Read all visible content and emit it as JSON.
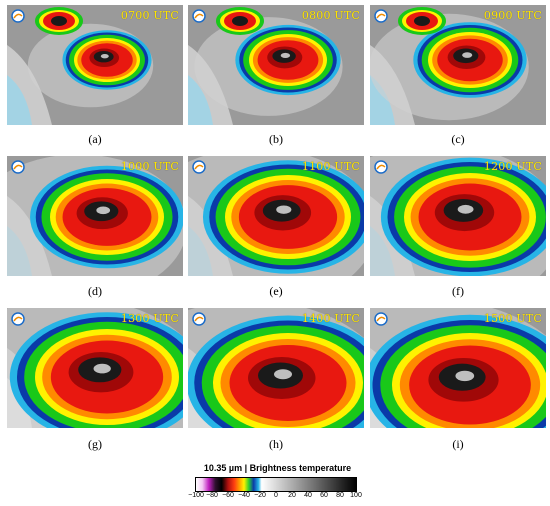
{
  "figure": {
    "panels": [
      {
        "id": "a",
        "caption": "(a)",
        "time": "0700 UTC"
      },
      {
        "id": "b",
        "caption": "(b)",
        "time": "0800 UTC"
      },
      {
        "id": "c",
        "caption": "(c)",
        "time": "0900 UTC"
      },
      {
        "id": "d",
        "caption": "(d)",
        "time": "1000 UTC"
      },
      {
        "id": "e",
        "caption": "(e)",
        "time": "1100 UTC"
      },
      {
        "id": "f",
        "caption": "(f)",
        "time": "1200 UTC"
      },
      {
        "id": "g",
        "caption": "(g)",
        "time": "1300 UTC"
      },
      {
        "id": "h",
        "caption": "(h)",
        "time": "1400 UTC"
      },
      {
        "id": "i",
        "caption": "(i)",
        "time": "1500 UTC"
      }
    ],
    "colorbar": {
      "title": "10.35 µm | Brightness temperature",
      "ticks": [
        "−100",
        "−80",
        "−60",
        "−40",
        "−20",
        "0",
        "20",
        "40",
        "60",
        "80",
        "100"
      ],
      "range": [
        -100,
        100
      ]
    },
    "colors": {
      "label": "#ffe600",
      "background_gray": "#9a9a9a",
      "cold_top": "#000000",
      "red_core": "#e81810",
      "orange": "#ff8a00",
      "yellow": "#fff200",
      "green": "#19c819",
      "blue_edge": "#0a3aa8",
      "cyan": "#27b4e6"
    }
  }
}
